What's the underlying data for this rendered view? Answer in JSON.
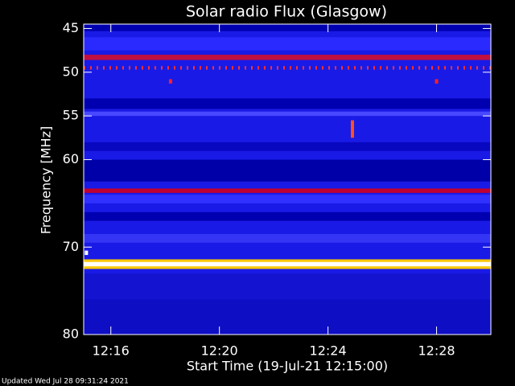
{
  "chart_data": {
    "type": "spectrogram",
    "title": "Solar radio Flux (Glasgow)",
    "ylabel": "Frequency [MHz]",
    "xlabel": "Start Time (19-Jul-21 12:15:00)",
    "footer": "Updated Wed Jul 28 09:31:24 2021",
    "background": "#1a1ae6",
    "xlim": [
      15,
      30
    ],
    "xticks": [
      {
        "value": 16,
        "label": "12:16"
      },
      {
        "value": 20,
        "label": "12:20"
      },
      {
        "value": 24,
        "label": "12:24"
      },
      {
        "value": 28,
        "label": "12:28"
      }
    ],
    "ylim": [
      44.5,
      80
    ],
    "yticks": [
      45,
      50,
      55,
      60,
      70,
      80
    ],
    "bands": [
      {
        "from": 44.5,
        "to": 45.3,
        "color": "#0000b0"
      },
      {
        "from": 46,
        "to": 47.5,
        "color": "#2a2aff"
      },
      {
        "from": 48,
        "to": 48.6,
        "color": "#c01040"
      },
      {
        "from": 49.3,
        "to": 49.7,
        "color": "#ff3030",
        "style": "dotted"
      },
      {
        "from": 53,
        "to": 54.2,
        "color": "#0000b0"
      },
      {
        "from": 54.5,
        "to": 55,
        "color": "#4848ff"
      },
      {
        "from": 58,
        "to": 59,
        "color": "#0808c0"
      },
      {
        "from": 60,
        "to": 62.5,
        "color": "#0000a8"
      },
      {
        "from": 63.3,
        "to": 63.8,
        "color": "#c00030"
      },
      {
        "from": 64,
        "to": 65,
        "color": "#3030ff"
      },
      {
        "from": 66,
        "to": 67,
        "color": "#0000b0"
      },
      {
        "from": 68.5,
        "to": 69.5,
        "color": "#3535f5"
      },
      {
        "from": 71.4,
        "to": 72.5,
        "color": "#ffc800"
      },
      {
        "from": 71.7,
        "to": 72.2,
        "color": "#ffffff"
      },
      {
        "from": 73,
        "to": 76,
        "color": "#1414d0"
      },
      {
        "from": 76,
        "to": 80,
        "color": "#0e0ec4"
      }
    ],
    "bursts": [
      {
        "time": 24.9,
        "from": 55.5,
        "to": 57.5,
        "color": "#ff5020"
      },
      {
        "time": 18.2,
        "from": 50.8,
        "to": 51.3,
        "color": "#ff2020"
      },
      {
        "time": 28,
        "from": 50.8,
        "to": 51.3,
        "color": "#ff2020"
      },
      {
        "time": 15.1,
        "from": 70.4,
        "to": 70.9,
        "color": "#ffffff"
      }
    ]
  }
}
